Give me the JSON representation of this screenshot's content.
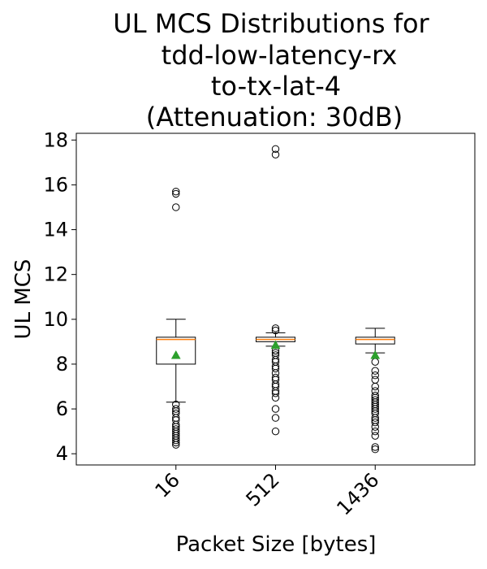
{
  "chart_data": {
    "type": "boxplot",
    "title_lines": [
      "UL MCS Distributions for",
      "tdd-low-latency-rx",
      "to-tx-lat-4",
      "(Attenuation: 30dB)"
    ],
    "xlabel": "Packet Size [bytes]",
    "ylabel": "UL MCS",
    "categories": [
      "16",
      "512",
      "1436"
    ],
    "yticks": [
      "4",
      "6",
      "8",
      "10",
      "12",
      "14",
      "16",
      "18"
    ],
    "ylim": [
      3.5,
      18.3
    ],
    "grid": false,
    "colors": {
      "median": "#ff7f0e",
      "mean": "#2ca02c",
      "box": "#000000"
    },
    "boxes": [
      {
        "category": "16",
        "whisker_low": 6.3,
        "q1": 8.0,
        "median": 9.1,
        "q3": 9.2,
        "whisker_high": 10.0,
        "mean": 8.4,
        "outliers": [
          15.7,
          15.6,
          15.0,
          6.2,
          6.0,
          5.9,
          5.8,
          5.6,
          5.5,
          5.3,
          5.2,
          5.1,
          5.0,
          4.9,
          4.8,
          4.7,
          4.6,
          4.5,
          4.4
        ]
      },
      {
        "category": "512",
        "whisker_low": 8.8,
        "q1": 9.0,
        "median": 9.1,
        "q3": 9.2,
        "whisker_high": 9.4,
        "mean": 8.85,
        "outliers": [
          17.6,
          17.35,
          9.6,
          9.5,
          8.6,
          8.5,
          8.4,
          8.2,
          8.1,
          7.9,
          7.8,
          7.6,
          7.4,
          7.3,
          7.1,
          7.0,
          6.8,
          6.7,
          6.5,
          6.0,
          5.6,
          5.0
        ]
      },
      {
        "category": "1436",
        "whisker_low": 8.5,
        "q1": 8.9,
        "median": 9.1,
        "q3": 9.2,
        "whisker_high": 9.6,
        "mean": 8.4,
        "outliers": [
          8.1,
          7.7,
          7.5,
          7.3,
          7.0,
          6.8,
          6.6,
          6.5,
          6.4,
          6.3,
          6.2,
          6.1,
          6.0,
          5.9,
          5.8,
          5.6,
          5.5,
          5.4,
          5.2,
          5.0,
          4.8,
          4.3,
          4.2
        ]
      }
    ]
  }
}
